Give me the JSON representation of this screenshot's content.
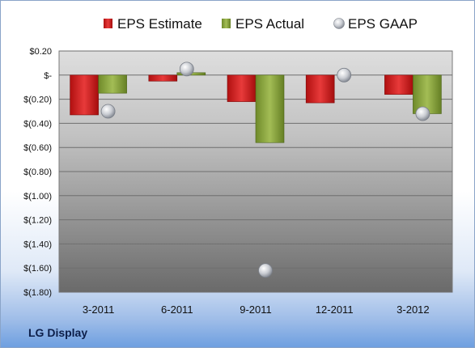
{
  "company_label": "LG Display",
  "chart_data": {
    "type": "bar",
    "categories": [
      "3-2011",
      "6-2011",
      "9-2011",
      "12-2011",
      "3-2012"
    ],
    "series": [
      {
        "name": "EPS Estimate",
        "kind": "bar",
        "color": "#d42020",
        "values": [
          -0.33,
          -0.05,
          -0.22,
          -0.23,
          -0.16
        ]
      },
      {
        "name": "EPS Actual",
        "kind": "bar",
        "color": "#86a33a",
        "values": [
          -0.15,
          0.02,
          -0.56,
          null,
          -0.32
        ]
      },
      {
        "name": "EPS GAAP",
        "kind": "marker",
        "color": "#b8bcc4",
        "values": [
          -0.3,
          0.05,
          -1.62,
          0.0,
          -0.32
        ]
      }
    ],
    "yticks": [
      "$0.20",
      "$-",
      "$(0.20)",
      "$(0.40)",
      "$(0.60)",
      "$(0.80)",
      "$(1.00)",
      "$(1.20)",
      "$(1.40)",
      "$(1.60)",
      "$(1.80)"
    ],
    "ylim": [
      -1.8,
      0.2
    ],
    "legend_position": "top",
    "grid": true
  }
}
